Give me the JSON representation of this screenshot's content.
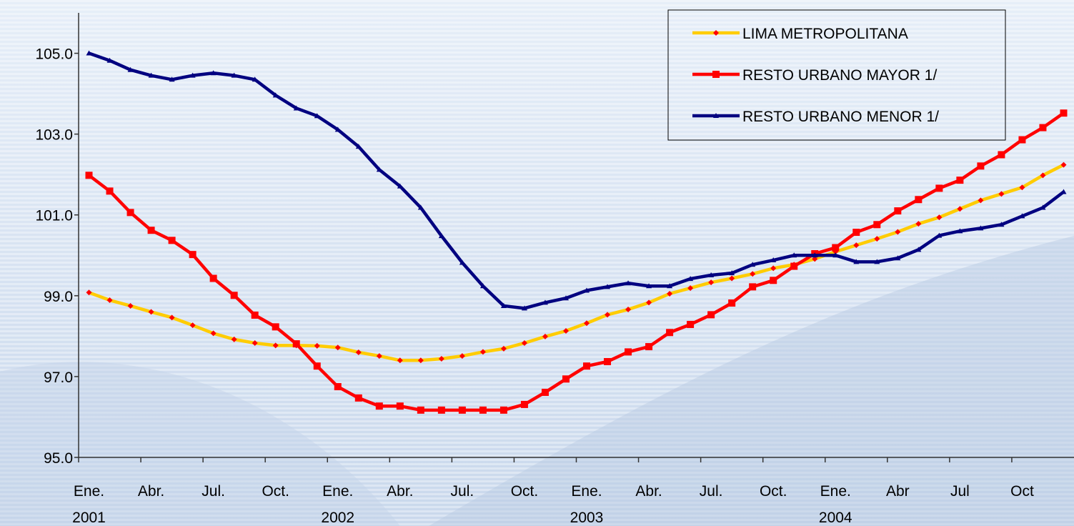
{
  "chart_data": {
    "type": "line",
    "categories": [
      "Ene.\n2001",
      null,
      null,
      "Abr.",
      null,
      null,
      "Jul.",
      null,
      null,
      "Oct.",
      null,
      null,
      "Ene.\n2002",
      null,
      null,
      "Abr.",
      null,
      null,
      "Jul.",
      null,
      null,
      "Oct.",
      null,
      null,
      "Ene.\n2003",
      null,
      null,
      "Abr.",
      null,
      null,
      "Jul.",
      null,
      null,
      "Oct.",
      null,
      null,
      "Ene.\n2004",
      null,
      null,
      "Abr",
      null,
      null,
      "Jul",
      null,
      null,
      "Oct",
      null,
      null
    ],
    "ylim": [
      95,
      106
    ],
    "yticks": [
      {
        "value": 95,
        "label": "95.0"
      },
      {
        "value": 97,
        "label": "97.0"
      },
      {
        "value": 99,
        "label": "99.0"
      },
      {
        "value": 101,
        "label": "101.0"
      },
      {
        "value": 103,
        "label": "103.0"
      },
      {
        "value": 105,
        "label": "105.0"
      }
    ],
    "grid": false,
    "legend": "upper right",
    "series": [
      {
        "name": "LIMA METROPOLITANA",
        "color": "#FFCC00",
        "marker": "diamond",
        "marker_color": "#FF0000",
        "values": [
          99.08,
          98.89,
          98.75,
          98.6,
          98.46,
          98.27,
          98.07,
          97.92,
          97.83,
          97.77,
          97.77,
          97.76,
          97.72,
          97.6,
          97.51,
          97.4,
          97.4,
          97.44,
          97.51,
          97.61,
          97.69,
          97.83,
          97.99,
          98.13,
          98.32,
          98.53,
          98.66,
          98.83,
          99.05,
          99.19,
          99.33,
          99.43,
          99.54,
          99.68,
          99.77,
          99.91,
          100.09,
          100.25,
          100.41,
          100.58,
          100.78,
          100.94,
          101.15,
          101.36,
          101.52,
          101.68,
          101.98,
          102.24
        ]
      },
      {
        "name": "RESTO URBANO MAYOR 1/",
        "color": "#FF0000",
        "marker": "square",
        "marker_color": "#FF0000",
        "values": [
          101.98,
          101.59,
          101.06,
          100.62,
          100.37,
          100.02,
          99.43,
          99.01,
          98.52,
          98.23,
          97.81,
          97.26,
          96.75,
          96.47,
          96.27,
          96.27,
          96.17,
          96.17,
          96.17,
          96.17,
          96.17,
          96.31,
          96.61,
          96.94,
          97.26,
          97.37,
          97.61,
          97.74,
          98.09,
          98.29,
          98.53,
          98.82,
          99.22,
          99.38,
          99.73,
          100.04,
          100.19,
          100.57,
          100.76,
          101.1,
          101.38,
          101.66,
          101.86,
          102.21,
          102.49,
          102.86,
          103.16,
          103.52
        ]
      },
      {
        "name": "RESTO URBANO MENOR 1/",
        "color": "#000080",
        "marker": "triangle",
        "marker_color": "#000080",
        "values": [
          105.0,
          104.82,
          104.59,
          104.45,
          104.35,
          104.45,
          104.51,
          104.45,
          104.35,
          103.96,
          103.64,
          103.45,
          103.11,
          102.69,
          102.12,
          101.71,
          101.18,
          100.48,
          99.82,
          99.24,
          98.75,
          98.69,
          98.83,
          98.94,
          99.13,
          99.22,
          99.31,
          99.24,
          99.24,
          99.42,
          99.51,
          99.56,
          99.77,
          99.88,
          100.0,
          100.0,
          100.0,
          99.84,
          99.84,
          99.93,
          100.14,
          100.49,
          100.6,
          100.67,
          100.76,
          100.97,
          101.18,
          101.57
        ]
      }
    ]
  }
}
